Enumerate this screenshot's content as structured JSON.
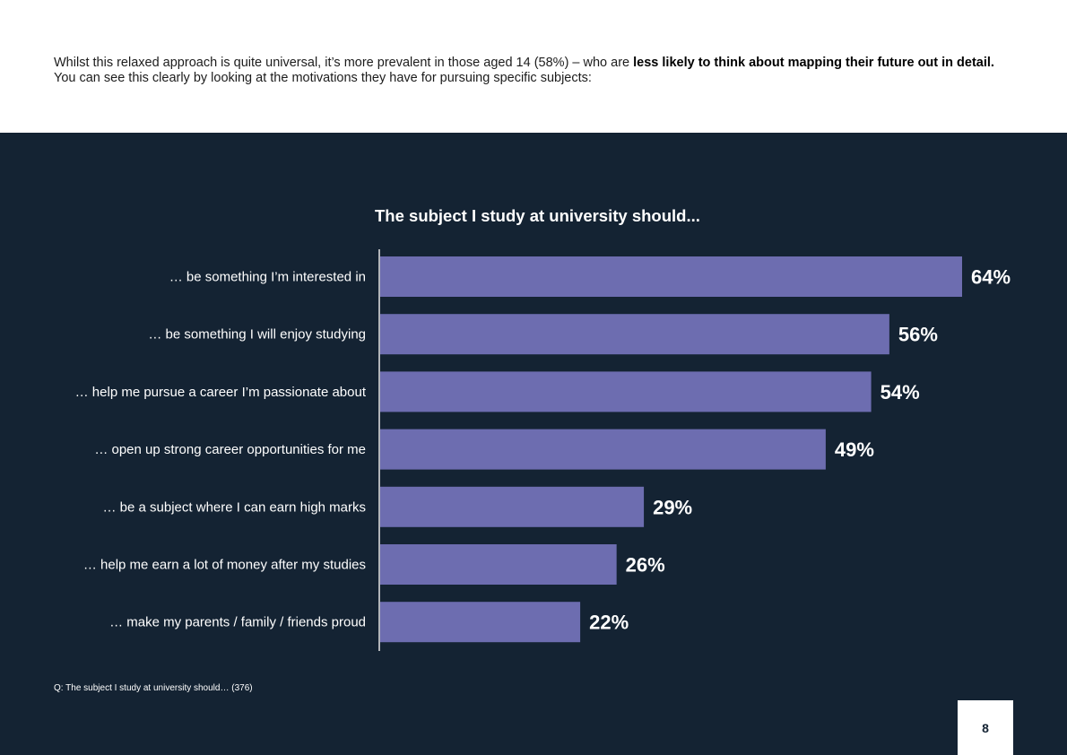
{
  "intro": {
    "part1": "Whilst this relaxed approach is quite universal, it’s more prevalent in those aged 14 (58%) – who are ",
    "bold": "less likely to think about mapping their future out in detail.",
    "line2": "You can see this clearly by looking at the motivations they have for pursuing specific subjects:"
  },
  "colors": {
    "panel": "#142333",
    "bar": "#6d6db0",
    "text": "#ffffff"
  },
  "chart_data": {
    "type": "bar",
    "orientation": "horizontal",
    "title": "The subject I study at university should...",
    "categories": [
      "… be something I’m interested in",
      "… be something I will enjoy studying",
      "… help me pursue a career I’m passionate about",
      "… open up strong career opportunities for me",
      "… be a subject where I can earn high marks",
      "… help me earn a lot of money after my studies",
      "… make my parents / family / friends proud"
    ],
    "values": [
      64,
      56,
      54,
      49,
      29,
      26,
      22
    ],
    "value_labels": [
      "64%",
      "56%",
      "54%",
      "49%",
      "29%",
      "26%",
      "22%"
    ],
    "unit": "%",
    "xlim": [
      0,
      64
    ],
    "grid": false,
    "legend": "none"
  },
  "footnote": "Q: The subject I study at university should… (376)",
  "page_number": "8"
}
